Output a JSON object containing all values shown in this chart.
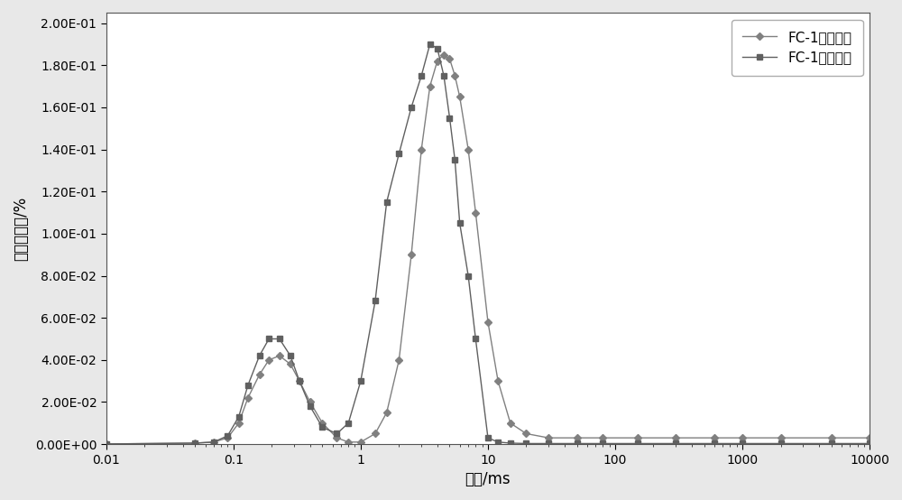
{
  "title": "",
  "xlabel": "时间/ms",
  "ylabel": "孔隙度分量/%",
  "line1_label": "FC-1饱水状态",
  "line2_label": "FC-1离心状态",
  "line1_color": "#808080",
  "line2_color": "#606060",
  "background_color": "#e8e8e8",
  "plot_bg_color": "#ffffff",
  "xlim": [
    0.01,
    10000
  ],
  "ylim": [
    0,
    0.205
  ],
  "yticks": [
    0.0,
    0.02,
    0.04,
    0.06,
    0.08,
    0.1,
    0.12,
    0.14,
    0.16,
    0.18,
    0.2
  ],
  "ytick_labels": [
    "0.00E+00",
    "2.00E-02",
    "4.00E-02",
    "6.00E-02",
    "8.00E-02",
    "1.00E-01",
    "1.20E-01",
    "1.40E-01",
    "1.60E-01",
    "1.80E-01",
    "2.00E-01"
  ],
  "xtick_labels": [
    "0.01",
    "0.1",
    "1",
    "10",
    "100",
    "1000",
    "10000"
  ],
  "line1_x": [
    0.01,
    0.05,
    0.07,
    0.09,
    0.11,
    0.13,
    0.16,
    0.19,
    0.23,
    0.28,
    0.33,
    0.4,
    0.5,
    0.65,
    0.8,
    1.0,
    1.3,
    1.6,
    2.0,
    2.5,
    3.0,
    3.5,
    4.0,
    4.5,
    5.0,
    5.5,
    6.0,
    7.0,
    8.0,
    10.0,
    12.0,
    15.0,
    20.0,
    30.0,
    50.0,
    80.0,
    150.0,
    300.0,
    600.0,
    1000.0,
    2000.0,
    5000.0,
    10000.0
  ],
  "line1_y": [
    0.0001,
    0.0005,
    0.001,
    0.003,
    0.01,
    0.022,
    0.033,
    0.04,
    0.042,
    0.038,
    0.03,
    0.02,
    0.01,
    0.003,
    0.001,
    0.001,
    0.005,
    0.015,
    0.04,
    0.09,
    0.14,
    0.17,
    0.182,
    0.185,
    0.183,
    0.175,
    0.165,
    0.14,
    0.11,
    0.058,
    0.03,
    0.01,
    0.005,
    0.003,
    0.003,
    0.003,
    0.003,
    0.003,
    0.003,
    0.003,
    0.003,
    0.003,
    0.003
  ],
  "line2_x": [
    0.01,
    0.05,
    0.07,
    0.09,
    0.11,
    0.13,
    0.16,
    0.19,
    0.23,
    0.28,
    0.33,
    0.4,
    0.5,
    0.65,
    0.8,
    1.0,
    1.3,
    1.6,
    2.0,
    2.5,
    3.0,
    3.5,
    4.0,
    4.5,
    5.0,
    5.5,
    6.0,
    7.0,
    8.0,
    10.0,
    12.0,
    15.0,
    20.0,
    30.0,
    50.0,
    80.0,
    150.0,
    300.0,
    600.0,
    1000.0,
    2000.0,
    5000.0,
    10000.0
  ],
  "line2_y": [
    0.0001,
    0.0005,
    0.001,
    0.004,
    0.013,
    0.028,
    0.042,
    0.05,
    0.05,
    0.042,
    0.03,
    0.018,
    0.008,
    0.005,
    0.01,
    0.03,
    0.068,
    0.115,
    0.138,
    0.16,
    0.175,
    0.19,
    0.188,
    0.175,
    0.155,
    0.135,
    0.105,
    0.08,
    0.05,
    0.003,
    0.001,
    0.0005,
    0.0003,
    0.0003,
    0.0003,
    0.0003,
    0.0003,
    0.0003,
    0.0003,
    0.0003,
    0.0003,
    0.0003,
    0.0003
  ]
}
